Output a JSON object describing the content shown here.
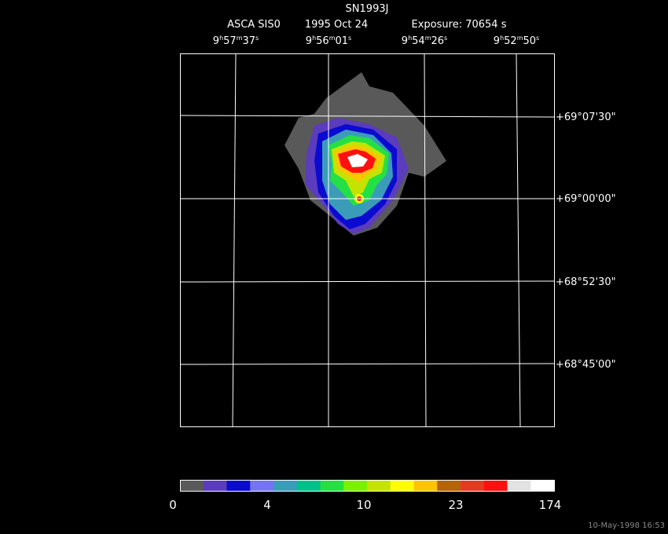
{
  "header": {
    "title": "SN1993J",
    "instrument": "ASCA SIS0",
    "date": "1995 Oct 24",
    "exposure": "Exposure: 70654 s"
  },
  "ra_labels": [
    [
      "9",
      "h",
      "57",
      "m",
      "37",
      "s"
    ],
    [
      "9",
      "h",
      "56",
      "m",
      "01",
      "s"
    ],
    [
      "9",
      "h",
      "54",
      "m",
      "26",
      "s"
    ],
    [
      "9",
      "h",
      "52",
      "m",
      "50",
      "s"
    ]
  ],
  "dec_labels": [
    "+69°07'30\"",
    "+69°00'00\"",
    "+68°52'30\"",
    "+68°45'00\""
  ],
  "colorbar": {
    "colors": [
      "#595959",
      "#5a3cbc",
      "#0a0ad0",
      "#7474f4",
      "#3b9cba",
      "#00c08a",
      "#24e044",
      "#7cf000",
      "#c4e400",
      "#ffff00",
      "#ffc400",
      "#b4640a",
      "#e43a22",
      "#ff1010",
      "#e2e2e2",
      "#ffffff"
    ],
    "labels": [
      "0",
      "4",
      "10",
      "23",
      "174"
    ]
  },
  "timestamp": "10-May-1998 16:53"
}
